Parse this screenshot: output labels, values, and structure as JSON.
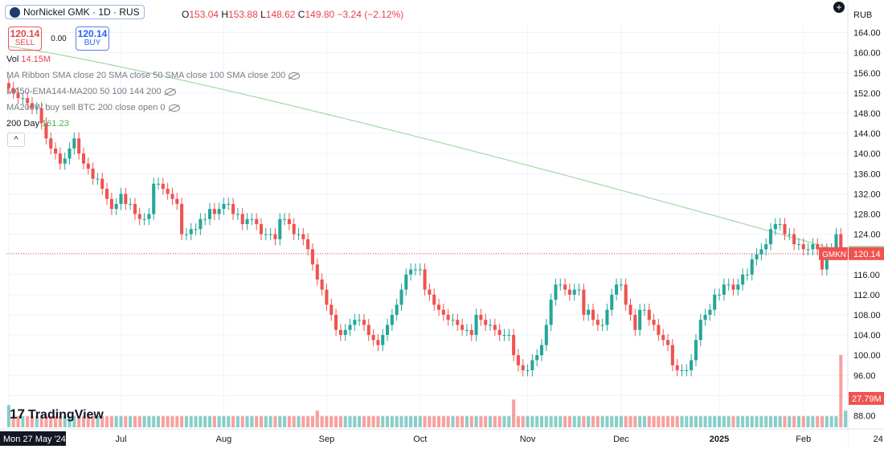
{
  "header": {
    "symbol_title": "NorNickel GMK · 1D · RUS",
    "ohlc": {
      "open": "153.04",
      "high": "153.88",
      "low": "148.62",
      "close": "149.80",
      "change": "−3.24 (−2.12%)"
    },
    "sell": {
      "price": "120.14",
      "label": "SELL"
    },
    "buy": {
      "price": "120.14",
      "label": "BUY"
    },
    "spread": "0.00"
  },
  "indicators": {
    "vol_label": "Vol",
    "vol_value": "14.15M",
    "ma_ribbon": "MA Ribbon SMA close 20 SMA close 50 SMA close 100 SMA close 200",
    "ema": "MA50-EMA144-MA200 50 100 144 200",
    "mabuy": "MA200W buy sell BTC 200 close open 0",
    "day200_label": "200 Day",
    "day200_value": "161.23"
  },
  "logo": "TradingView",
  "currency": "RUB",
  "colors": {
    "up": "#26a69a",
    "down": "#ef5350",
    "sma": "#a5d6a7",
    "blue": "#2962ff"
  },
  "chart_data": {
    "type": "candlestick",
    "symbol": "GMKN",
    "ylim": [
      86,
      166
    ],
    "y_ticks": [
      88,
      92,
      96,
      100,
      104,
      108,
      112,
      116,
      120,
      124,
      128,
      132,
      136,
      140,
      144,
      148,
      152,
      156,
      160,
      164
    ],
    "x_ticks": [
      {
        "label": "Mon 27 May '24",
        "index": 0
      },
      {
        "label": "Jul",
        "index": 24
      },
      {
        "label": "Aug",
        "index": 46
      },
      {
        "label": "Sep",
        "index": 68
      },
      {
        "label": "Oct",
        "index": 88
      },
      {
        "label": "Nov",
        "index": 111
      },
      {
        "label": "Dec",
        "index": 131
      },
      {
        "label": "2025",
        "index": 152
      },
      {
        "label": "Feb",
        "index": 170
      },
      {
        "label": "24",
        "index": 186
      }
    ],
    "closes": [
      153,
      152,
      151,
      151,
      150,
      149,
      149,
      146,
      143,
      141,
      140,
      138,
      139,
      141,
      143,
      140,
      138,
      137,
      135,
      135,
      133,
      131,
      129,
      130,
      132,
      130,
      130,
      128,
      127,
      127,
      128,
      134,
      134,
      133,
      132,
      131,
      130,
      124,
      124,
      125,
      125,
      127,
      127,
      129,
      128,
      129,
      130,
      130,
      128,
      128,
      126,
      127,
      127,
      126,
      124,
      124,
      124,
      123,
      127,
      127,
      126,
      124,
      124,
      123,
      121,
      118,
      115,
      113,
      110,
      108,
      105,
      104,
      105,
      106,
      107,
      107,
      106,
      104,
      103,
      102,
      104,
      106,
      108,
      110,
      113,
      116,
      117,
      117,
      117,
      113,
      112,
      110,
      109,
      108,
      107,
      107,
      106,
      105,
      105,
      104,
      108,
      107,
      106,
      106,
      105,
      104,
      104,
      104,
      100,
      98,
      97,
      97,
      99,
      100,
      102,
      106,
      111,
      114,
      114,
      113,
      112,
      113,
      113,
      108,
      109,
      107,
      106,
      106,
      109,
      112,
      114,
      114,
      110,
      108,
      105,
      109,
      109,
      107,
      106,
      104,
      103,
      102,
      98,
      97,
      97,
      97,
      99,
      103,
      107,
      108,
      109,
      112,
      112,
      114,
      114,
      113,
      114,
      116,
      116,
      119,
      120,
      121,
      122,
      125,
      126,
      126,
      124,
      124,
      122,
      122,
      121,
      121,
      122,
      121,
      117,
      121,
      121,
      124,
      120,
      120
    ],
    "sma200": {
      "start": 161.23,
      "end": 120.4
    },
    "last_price": "120.14",
    "sma_price": "120.40",
    "volume_label": "27.79M",
    "volume": [
      4,
      2,
      2,
      2,
      2,
      2,
      2,
      2,
      2,
      2,
      2,
      2,
      2,
      2,
      2,
      2,
      2,
      2,
      2,
      2,
      2,
      2,
      2,
      2,
      2,
      2,
      2,
      2,
      2,
      2,
      2,
      2,
      2,
      2,
      2,
      2,
      2,
      2,
      2,
      2,
      2,
      2,
      2,
      2,
      2,
      2,
      2,
      2,
      2,
      2,
      2,
      2,
      2,
      2,
      2,
      2,
      2,
      2,
      2,
      2,
      2,
      2,
      2,
      2,
      2,
      2,
      3,
      2,
      2,
      2,
      2,
      2,
      2,
      2,
      2,
      2,
      2,
      2,
      2,
      2,
      2,
      2,
      2,
      2,
      2,
      2,
      2,
      2,
      2,
      2,
      2,
      2,
      2,
      2,
      2,
      2,
      2,
      2,
      2,
      2,
      2,
      2,
      2,
      2,
      2,
      2,
      2,
      2,
      5,
      2,
      2,
      2,
      2,
      2,
      2,
      2,
      2,
      2,
      2,
      2,
      2,
      2,
      2,
      2,
      2,
      2,
      2,
      2,
      2,
      2,
      2,
      2,
      2,
      2,
      2,
      2,
      2,
      2,
      2,
      2,
      2,
      2,
      2,
      2,
      2,
      2,
      2,
      2,
      2,
      2,
      2,
      2,
      2,
      2,
      2,
      2,
      2,
      2,
      2,
      2,
      2,
      2,
      2,
      2,
      2,
      2,
      2,
      2,
      2,
      2,
      2,
      2,
      2,
      2,
      2,
      2,
      2,
      2,
      13,
      3
    ]
  }
}
